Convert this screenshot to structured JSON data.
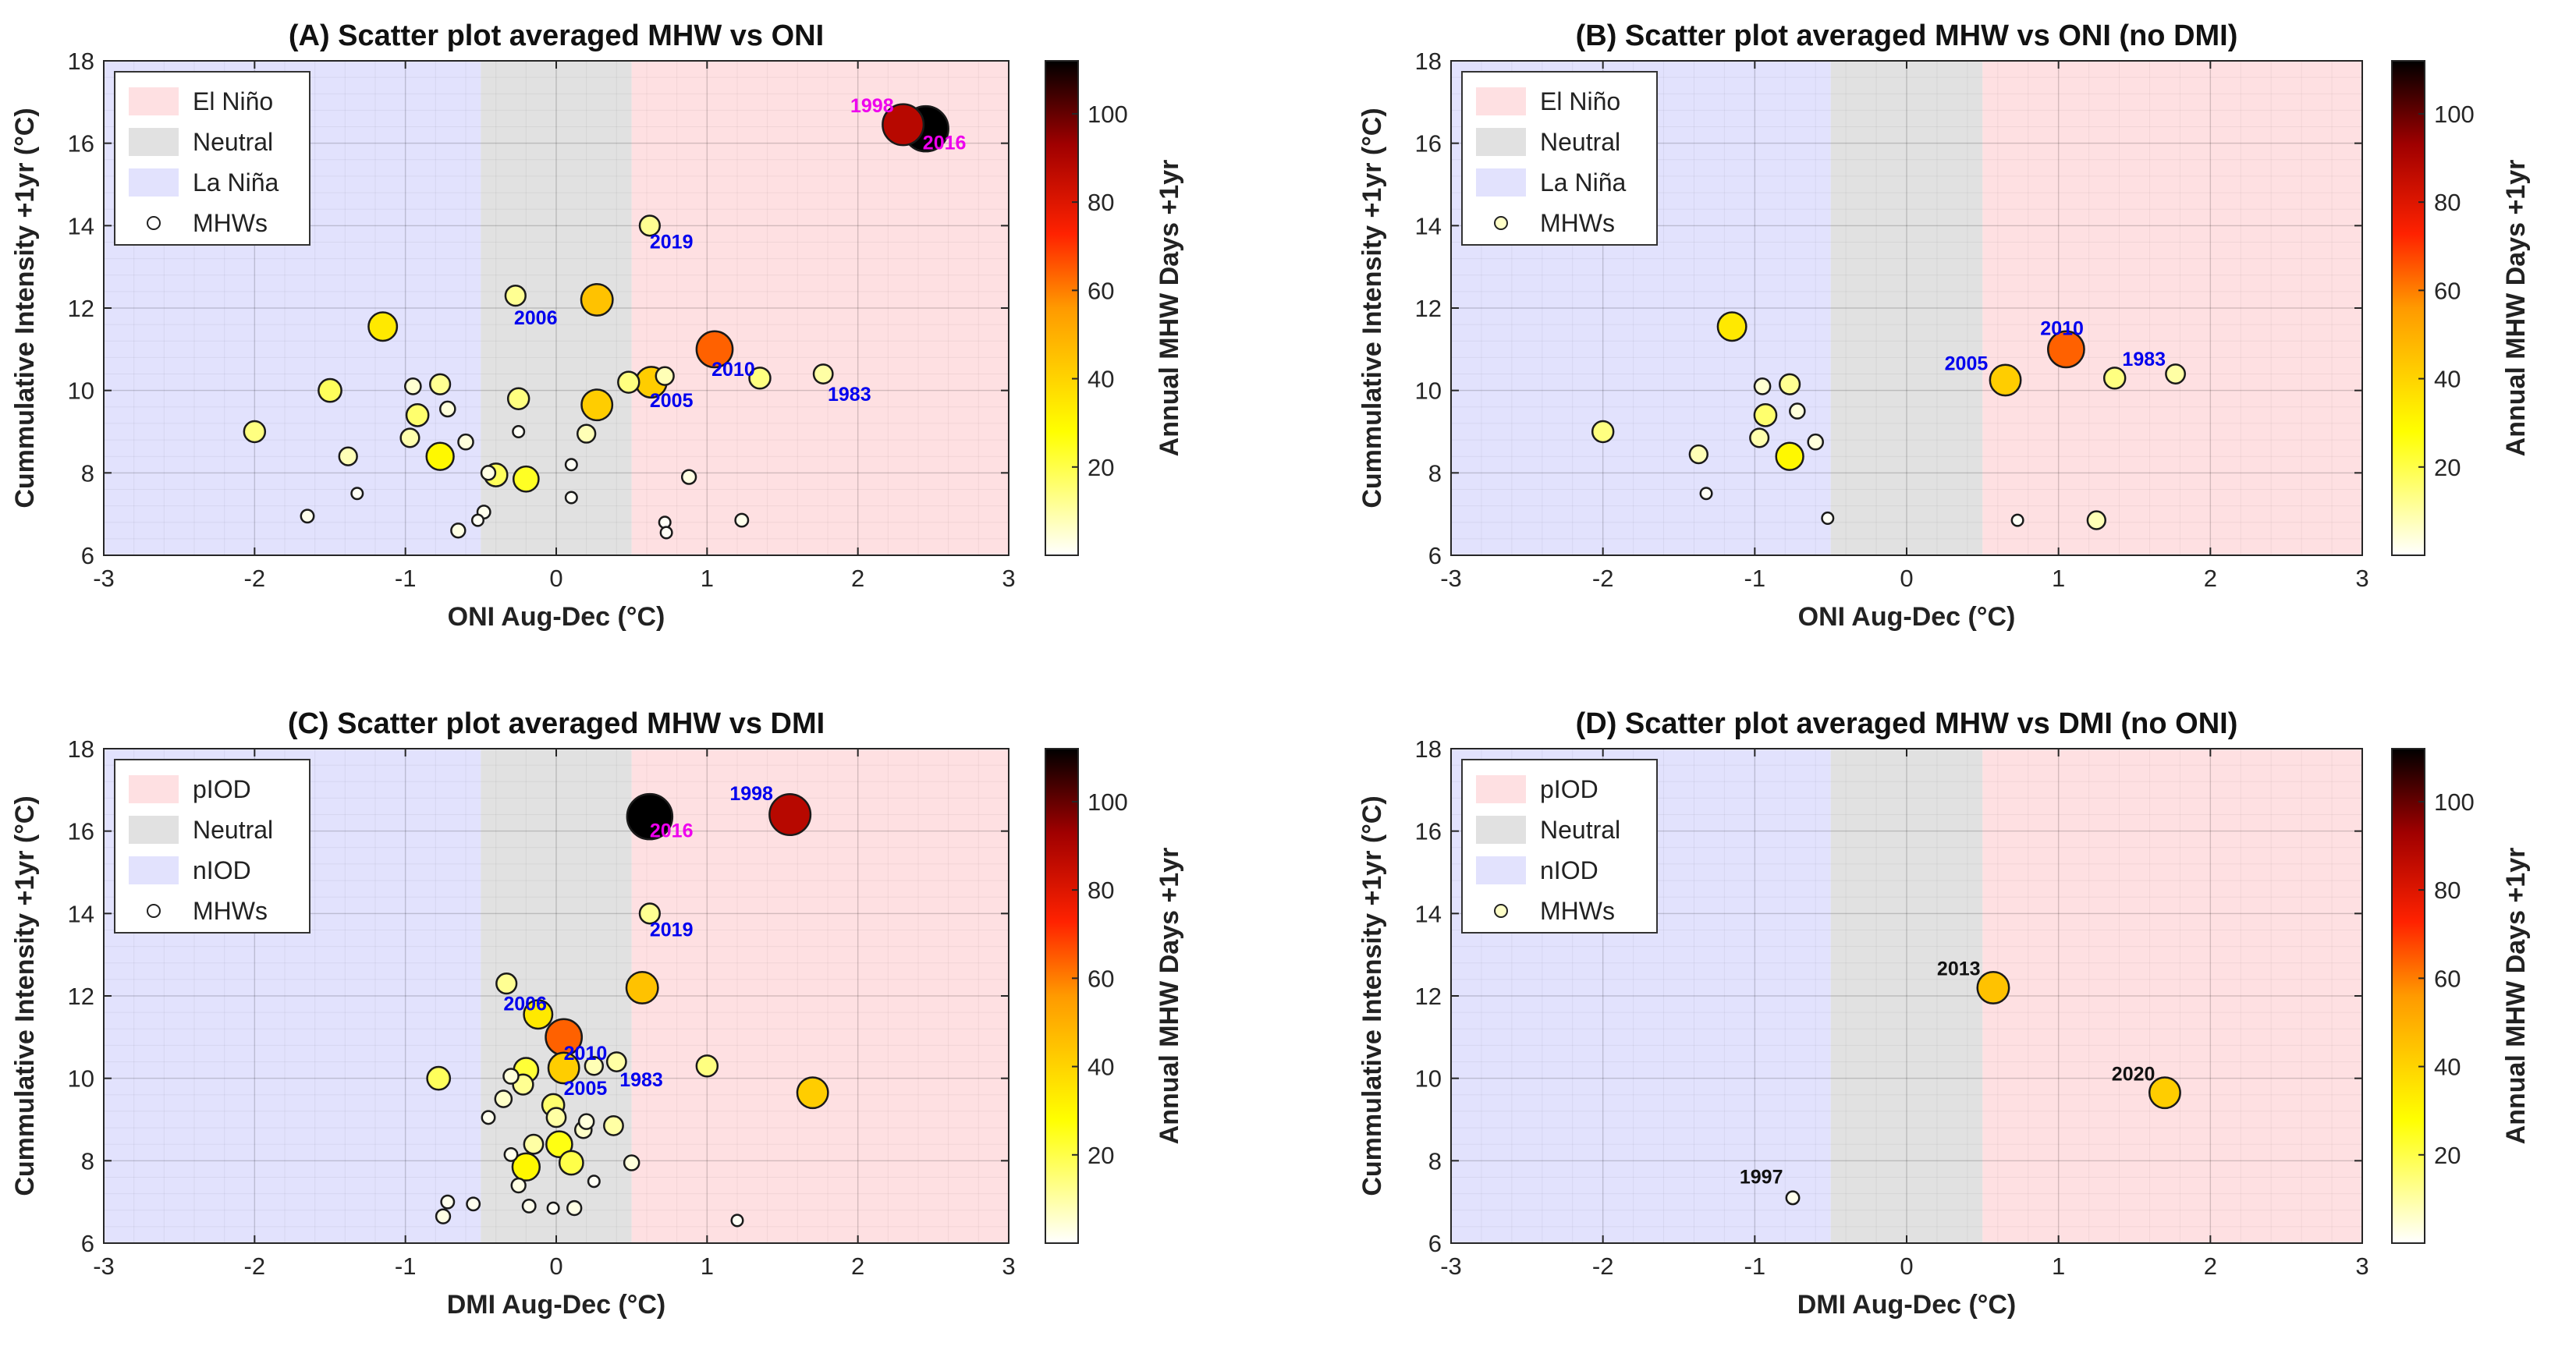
{
  "figure": {
    "colors": {
      "el_nino": "#fee0e2",
      "neutral": "#e1e1e1",
      "la_nina": "#e2e2fd",
      "axis": "#262626",
      "grid": "#d8d8d8",
      "label_blue": "#0000ee",
      "label_magenta": "#ee00ee",
      "label_black": "#111111"
    }
  },
  "colorbar": {
    "label": "Annual MHW Days +1yr",
    "ticks": [
      20,
      40,
      60,
      80,
      100
    ],
    "range": [
      0,
      112
    ],
    "colormap": "hot-reversed"
  },
  "chart_data": [
    {
      "id": "A",
      "type": "scatter",
      "title": "(A) Scatter plot averaged MHW vs ONI",
      "xlabel": "ONI Aug-Dec (°C)",
      "ylabel": "Cummulative Intensity +1yr (°C)",
      "xlim": [
        -3,
        3
      ],
      "ylim": [
        6,
        18
      ],
      "xticks": [
        -3,
        -2,
        -1,
        0,
        1,
        2,
        3
      ],
      "yticks": [
        6,
        8,
        10,
        12,
        14,
        16,
        18
      ],
      "regions": [
        {
          "name": "la_nina",
          "from": -3,
          "to": -0.5
        },
        {
          "name": "neutral",
          "from": -0.5,
          "to": 0.5
        },
        {
          "name": "el_nino",
          "from": 0.5,
          "to": 3
        }
      ],
      "legend": {
        "position": "top-left",
        "entries": [
          "El Niño",
          "Neutral",
          "La Niña",
          "MHWs"
        ]
      },
      "points": [
        {
          "x": 2.45,
          "y": 16.35,
          "days": 112
        },
        {
          "x": 2.3,
          "y": 16.45,
          "days": 88
        },
        {
          "x": 1.05,
          "y": 11.0,
          "days": 64
        },
        {
          "x": 0.27,
          "y": 12.2,
          "days": 45
        },
        {
          "x": 0.27,
          "y": 9.65,
          "days": 42
        },
        {
          "x": 0.63,
          "y": 10.2,
          "days": 42
        },
        {
          "x": -1.15,
          "y": 11.55,
          "days": 34
        },
        {
          "x": 0.62,
          "y": 14.0,
          "days": 12
        },
        {
          "x": -0.27,
          "y": 12.3,
          "days": 12
        },
        {
          "x": 1.35,
          "y": 10.3,
          "days": 14
        },
        {
          "x": 1.77,
          "y": 10.4,
          "days": 10
        },
        {
          "x": 0.48,
          "y": 10.2,
          "days": 14
        },
        {
          "x": 0.72,
          "y": 10.35,
          "days": 8
        },
        {
          "x": -1.5,
          "y": 10.0,
          "days": 18
        },
        {
          "x": -0.95,
          "y": 10.1,
          "days": 5
        },
        {
          "x": -0.77,
          "y": 10.15,
          "days": 12
        },
        {
          "x": -0.25,
          "y": 9.8,
          "days": 14
        },
        {
          "x": -2.0,
          "y": 9.0,
          "days": 14
        },
        {
          "x": -0.92,
          "y": 9.4,
          "days": 16
        },
        {
          "x": -0.72,
          "y": 9.55,
          "days": 4
        },
        {
          "x": -0.97,
          "y": 8.85,
          "days": 9
        },
        {
          "x": -0.6,
          "y": 8.75,
          "days": 4
        },
        {
          "x": -1.38,
          "y": 8.4,
          "days": 8
        },
        {
          "x": -0.77,
          "y": 8.4,
          "days": 30
        },
        {
          "x": -0.45,
          "y": 8.0,
          "days": 3
        },
        {
          "x": -0.4,
          "y": 7.95,
          "days": 18
        },
        {
          "x": -0.2,
          "y": 7.85,
          "days": 24
        },
        {
          "x": -0.25,
          "y": 9.0,
          "days": 1
        },
        {
          "x": 0.2,
          "y": 8.95,
          "days": 8
        },
        {
          "x": 0.1,
          "y": 8.2,
          "days": 1
        },
        {
          "x": 0.88,
          "y": 7.9,
          "days": 3
        },
        {
          "x": 0.1,
          "y": 7.4,
          "days": 1
        },
        {
          "x": -1.32,
          "y": 7.5,
          "days": 1
        },
        {
          "x": -1.65,
          "y": 6.95,
          "days": 2
        },
        {
          "x": -0.48,
          "y": 7.05,
          "days": 2
        },
        {
          "x": -0.52,
          "y": 6.85,
          "days": 1
        },
        {
          "x": -0.65,
          "y": 6.6,
          "days": 3
        },
        {
          "x": 0.72,
          "y": 6.8,
          "days": 1
        },
        {
          "x": 0.73,
          "y": 6.55,
          "days": 1
        },
        {
          "x": 1.23,
          "y": 6.85,
          "days": 2
        }
      ],
      "annotations": [
        {
          "text": "1998",
          "x": 1.95,
          "y": 16.75,
          "color": "magenta"
        },
        {
          "text": "2016",
          "x": 2.43,
          "y": 15.85,
          "color": "magenta"
        },
        {
          "text": "2019",
          "x": 0.62,
          "y": 13.45,
          "color": "blue"
        },
        {
          "text": "2006",
          "x": -0.28,
          "y": 11.6,
          "color": "blue"
        },
        {
          "text": "2010",
          "x": 1.03,
          "y": 10.35,
          "color": "blue"
        },
        {
          "text": "2005",
          "x": 0.62,
          "y": 9.6,
          "color": "blue"
        },
        {
          "text": "1983",
          "x": 1.8,
          "y": 9.75,
          "color": "blue"
        }
      ]
    },
    {
      "id": "B",
      "type": "scatter",
      "title": "(B) Scatter plot averaged MHW vs ONI (no DMI)",
      "xlabel": "ONI Aug-Dec (°C)",
      "ylabel": "Cummulative Intensity +1yr (°C)",
      "xlim": [
        -3,
        3
      ],
      "ylim": [
        6,
        18
      ],
      "xticks": [
        -3,
        -2,
        -1,
        0,
        1,
        2,
        3
      ],
      "yticks": [
        6,
        8,
        10,
        12,
        14,
        16,
        18
      ],
      "regions": [
        {
          "name": "la_nina",
          "from": -3,
          "to": -0.5
        },
        {
          "name": "neutral",
          "from": -0.5,
          "to": 0.5
        },
        {
          "name": "el_nino",
          "from": 0.5,
          "to": 3
        }
      ],
      "legend": {
        "position": "top-left",
        "entries": [
          "El Niño",
          "Neutral",
          "La Niña",
          "MHWs"
        ]
      },
      "points": [
        {
          "x": 1.05,
          "y": 11.0,
          "days": 64
        },
        {
          "x": 0.65,
          "y": 10.25,
          "days": 42
        },
        {
          "x": -1.15,
          "y": 11.55,
          "days": 34
        },
        {
          "x": 1.37,
          "y": 10.3,
          "days": 14
        },
        {
          "x": 1.77,
          "y": 10.4,
          "days": 10
        },
        {
          "x": -0.95,
          "y": 10.1,
          "days": 5
        },
        {
          "x": -0.77,
          "y": 10.15,
          "days": 12
        },
        {
          "x": -2.0,
          "y": 9.0,
          "days": 14
        },
        {
          "x": -0.93,
          "y": 9.4,
          "days": 16
        },
        {
          "x": -0.72,
          "y": 9.5,
          "days": 4
        },
        {
          "x": -0.97,
          "y": 8.85,
          "days": 9
        },
        {
          "x": -0.6,
          "y": 8.75,
          "days": 4
        },
        {
          "x": -1.37,
          "y": 8.45,
          "days": 8
        },
        {
          "x": -0.77,
          "y": 8.4,
          "days": 30
        },
        {
          "x": -1.32,
          "y": 7.5,
          "days": 1
        },
        {
          "x": -0.52,
          "y": 6.9,
          "days": 1
        },
        {
          "x": 0.73,
          "y": 6.85,
          "days": 1
        },
        {
          "x": 1.25,
          "y": 6.85,
          "days": 8
        }
      ],
      "annotations": [
        {
          "text": "2010",
          "x": 0.88,
          "y": 11.35,
          "color": "blue"
        },
        {
          "text": "2005",
          "x": 0.25,
          "y": 10.5,
          "color": "blue"
        },
        {
          "text": "1983",
          "x": 1.42,
          "y": 10.6,
          "color": "blue"
        }
      ]
    },
    {
      "id": "C",
      "type": "scatter",
      "title": "(C) Scatter plot averaged MHW vs DMI",
      "xlabel": "DMI Aug-Dec (°C)",
      "ylabel": "Cummulative Intensity +1yr (°C)",
      "xlim": [
        -3,
        3
      ],
      "ylim": [
        6,
        18
      ],
      "xticks": [
        -3,
        -2,
        -1,
        0,
        1,
        2,
        3
      ],
      "yticks": [
        6,
        8,
        10,
        12,
        14,
        16,
        18
      ],
      "regions": [
        {
          "name": "la_nina",
          "from": -3,
          "to": -0.5
        },
        {
          "name": "neutral",
          "from": -0.5,
          "to": 0.5
        },
        {
          "name": "el_nino",
          "from": 0.5,
          "to": 3
        }
      ],
      "legend": {
        "position": "top-left",
        "entries": [
          "pIOD",
          "Neutral",
          "nIOD",
          "MHWs"
        ]
      },
      "points": [
        {
          "x": 0.62,
          "y": 16.35,
          "days": 112
        },
        {
          "x": 1.55,
          "y": 16.4,
          "days": 88
        },
        {
          "x": 0.05,
          "y": 11.0,
          "days": 64
        },
        {
          "x": 0.57,
          "y": 12.2,
          "days": 45
        },
        {
          "x": 1.7,
          "y": 9.65,
          "days": 42
        },
        {
          "x": 0.05,
          "y": 10.25,
          "days": 42
        },
        {
          "x": -0.12,
          "y": 11.55,
          "days": 34
        },
        {
          "x": 0.62,
          "y": 14.0,
          "days": 12
        },
        {
          "x": -0.33,
          "y": 12.3,
          "days": 12
        },
        {
          "x": 0.4,
          "y": 10.4,
          "days": 10
        },
        {
          "x": 1.0,
          "y": 10.3,
          "days": 14
        },
        {
          "x": -0.2,
          "y": 10.2,
          "days": 22
        },
        {
          "x": -0.3,
          "y": 10.05,
          "days": 4
        },
        {
          "x": -0.22,
          "y": 9.85,
          "days": 12
        },
        {
          "x": -0.78,
          "y": 10.0,
          "days": 18
        },
        {
          "x": 0.25,
          "y": 10.3,
          "days": 8
        },
        {
          "x": -0.35,
          "y": 9.5,
          "days": 6
        },
        {
          "x": -0.45,
          "y": 9.05,
          "days": 2
        },
        {
          "x": 0.0,
          "y": 9.05,
          "days": 10
        },
        {
          "x": -0.02,
          "y": 9.35,
          "days": 16
        },
        {
          "x": 0.2,
          "y": 8.95,
          "days": 4
        },
        {
          "x": 0.18,
          "y": 8.75,
          "days": 6
        },
        {
          "x": 0.38,
          "y": 8.85,
          "days": 10
        },
        {
          "x": -0.15,
          "y": 8.4,
          "days": 10
        },
        {
          "x": 0.02,
          "y": 8.4,
          "days": 26
        },
        {
          "x": -0.3,
          "y": 8.15,
          "days": 2
        },
        {
          "x": -0.2,
          "y": 7.85,
          "days": 30
        },
        {
          "x": 0.1,
          "y": 7.95,
          "days": 20
        },
        {
          "x": 0.5,
          "y": 7.95,
          "days": 4
        },
        {
          "x": -0.25,
          "y": 7.4,
          "days": 3
        },
        {
          "x": 0.25,
          "y": 7.5,
          "days": 1
        },
        {
          "x": -0.72,
          "y": 7.0,
          "days": 2
        },
        {
          "x": -0.55,
          "y": 6.95,
          "days": 2
        },
        {
          "x": -0.18,
          "y": 6.9,
          "days": 2
        },
        {
          "x": -0.02,
          "y": 6.85,
          "days": 1
        },
        {
          "x": 0.12,
          "y": 6.85,
          "days": 3
        },
        {
          "x": -0.75,
          "y": 6.65,
          "days": 3
        },
        {
          "x": 1.2,
          "y": 6.55,
          "days": 1
        }
      ],
      "annotations": [
        {
          "text": "1998",
          "x": 1.15,
          "y": 16.75,
          "color": "blue"
        },
        {
          "text": "2016",
          "x": 0.62,
          "y": 15.85,
          "color": "magenta"
        },
        {
          "text": "2019",
          "x": 0.62,
          "y": 13.45,
          "color": "blue"
        },
        {
          "text": "2006",
          "x": -0.35,
          "y": 11.65,
          "color": "blue"
        },
        {
          "text": "2010",
          "x": 0.05,
          "y": 10.45,
          "color": "blue"
        },
        {
          "text": "2005",
          "x": 0.05,
          "y": 9.6,
          "color": "blue"
        },
        {
          "text": "1983",
          "x": 0.42,
          "y": 9.8,
          "color": "blue"
        }
      ]
    },
    {
      "id": "D",
      "type": "scatter",
      "title": "(D) Scatter plot averaged MHW vs DMI (no ONI)",
      "xlabel": "DMI Aug-Dec (°C)",
      "ylabel": "Cummulative Intensity +1yr (°C)",
      "xlim": [
        -3,
        3
      ],
      "ylim": [
        6,
        18
      ],
      "xticks": [
        -3,
        -2,
        -1,
        0,
        1,
        2,
        3
      ],
      "yticks": [
        6,
        8,
        10,
        12,
        14,
        16,
        18
      ],
      "regions": [
        {
          "name": "la_nina",
          "from": -3,
          "to": -0.5
        },
        {
          "name": "neutral",
          "from": -0.5,
          "to": 0.5
        },
        {
          "name": "el_nino",
          "from": 0.5,
          "to": 3
        }
      ],
      "legend": {
        "position": "top-left",
        "entries": [
          "pIOD",
          "Neutral",
          "nIOD",
          "MHWs"
        ]
      },
      "points": [
        {
          "x": 0.57,
          "y": 12.2,
          "days": 45
        },
        {
          "x": 1.7,
          "y": 9.65,
          "days": 42
        },
        {
          "x": -0.75,
          "y": 7.1,
          "days": 2
        }
      ],
      "annotations": [
        {
          "text": "2013",
          "x": 0.2,
          "y": 12.5,
          "color": "black"
        },
        {
          "text": "2020",
          "x": 1.35,
          "y": 9.95,
          "color": "black"
        },
        {
          "text": "1997",
          "x": -1.1,
          "y": 7.45,
          "color": "black"
        }
      ]
    }
  ]
}
